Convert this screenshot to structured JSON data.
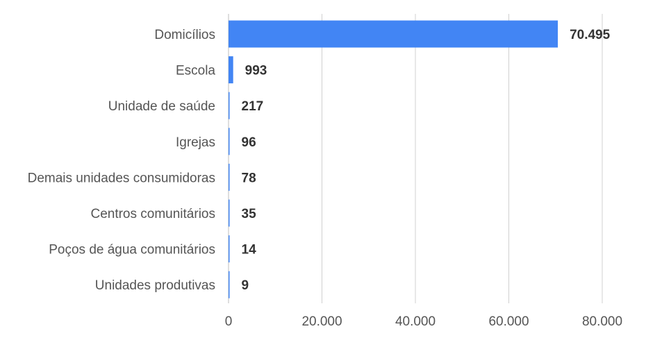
{
  "chart_data": {
    "type": "bar",
    "orientation": "horizontal",
    "categories": [
      "Domicílios",
      "Escola",
      "Unidade de saúde",
      "Igrejas",
      "Demais unidades consumidoras",
      "Centros comunitários",
      "Poços de água comunitários",
      "Unidades produtivas"
    ],
    "values": [
      70495,
      993,
      217,
      96,
      78,
      35,
      14,
      9
    ],
    "value_labels": [
      "70.495",
      "993",
      "217",
      "96",
      "78",
      "35",
      "14",
      "9"
    ],
    "xlim": [
      0,
      80000
    ],
    "xticks": [
      0,
      20000,
      40000,
      60000,
      80000
    ],
    "xtick_labels": [
      "0",
      "20.000",
      "40.000",
      "60.000",
      "80.000"
    ],
    "grid": "vertical",
    "bar_color": "#4285f4",
    "title": "",
    "xlabel": "",
    "ylabel": ""
  }
}
